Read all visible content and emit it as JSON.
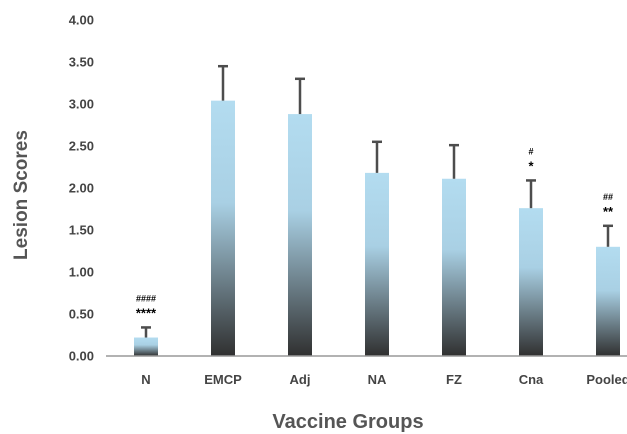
{
  "chart_data": {
    "type": "bar",
    "categories": [
      "N",
      "EMCP",
      "Adj",
      "NA",
      "FZ",
      "Cna",
      "Pooled"
    ],
    "values": [
      0.22,
      3.04,
      2.88,
      2.18,
      2.11,
      1.76,
      1.3
    ],
    "error_upper": [
      0.34,
      3.45,
      3.3,
      2.55,
      2.51,
      2.09,
      1.55
    ],
    "title": "",
    "xlabel": "Vaccine Groups",
    "ylabel": "Lesion Scores",
    "ylim": [
      0,
      4
    ],
    "yticks": [
      "0.00",
      "0.50",
      "1.00",
      "1.50",
      "2.00",
      "2.50",
      "3.00",
      "3.50",
      "4.00"
    ],
    "annotations": [
      {
        "category": "N",
        "stars": "****",
        "hashes": "####"
      },
      {
        "category": "Cna",
        "stars": "*",
        "hashes": "#"
      },
      {
        "category": "Pooled",
        "stars": "**",
        "hashes": "##"
      }
    ],
    "grid": false,
    "legend": "none",
    "bar_gradient": [
      "#b3dcf0",
      "#303030"
    ],
    "error_bar_color": "#4d4d4d"
  }
}
